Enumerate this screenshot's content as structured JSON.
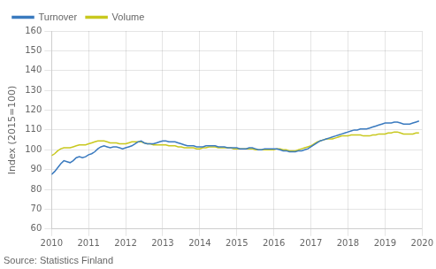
{
  "chart_data": {
    "type": "line",
    "ylabel": "Index (2015=100)",
    "annotations": [
      "Source: Statistics Finland"
    ],
    "xlim": [
      2010,
      2020
    ],
    "ylim": [
      60,
      160
    ],
    "xticks": [
      2010,
      2011,
      2012,
      2013,
      2014,
      2015,
      2016,
      2017,
      2018,
      2019,
      2020
    ],
    "yticks": [
      60,
      70,
      80,
      90,
      100,
      110,
      120,
      130,
      140,
      150,
      160
    ],
    "grid": true,
    "legend": "upper left",
    "x": [
      2010.0,
      2010.083,
      2010.167,
      2010.25,
      2010.333,
      2010.417,
      2010.5,
      2010.583,
      2010.667,
      2010.75,
      2010.833,
      2010.917,
      2011.0,
      2011.083,
      2011.167,
      2011.25,
      2011.333,
      2011.417,
      2011.5,
      2011.583,
      2011.667,
      2011.75,
      2011.833,
      2011.917,
      2012.0,
      2012.083,
      2012.167,
      2012.25,
      2012.333,
      2012.417,
      2012.5,
      2012.583,
      2012.667,
      2012.75,
      2012.833,
      2012.917,
      2013.0,
      2013.083,
      2013.167,
      2013.25,
      2013.333,
      2013.417,
      2013.5,
      2013.583,
      2013.667,
      2013.75,
      2013.833,
      2013.917,
      2014.0,
      2014.083,
      2014.167,
      2014.25,
      2014.333,
      2014.417,
      2014.5,
      2014.583,
      2014.667,
      2014.75,
      2014.833,
      2014.917,
      2015.0,
      2015.083,
      2015.167,
      2015.25,
      2015.333,
      2015.417,
      2015.5,
      2015.583,
      2015.667,
      2015.75,
      2015.833,
      2015.917,
      2016.0,
      2016.083,
      2016.167,
      2016.25,
      2016.333,
      2016.417,
      2016.5,
      2016.583,
      2016.667,
      2016.75,
      2016.833,
      2016.917,
      2017.0,
      2017.083,
      2017.167,
      2017.25,
      2017.333,
      2017.417,
      2017.5,
      2017.583,
      2017.667,
      2017.75,
      2017.833,
      2017.917,
      2018.0,
      2018.083,
      2018.167,
      2018.25,
      2018.333,
      2018.417,
      2018.5,
      2018.583,
      2018.667,
      2018.75,
      2018.833,
      2018.917,
      2019.0,
      2019.083,
      2019.167,
      2019.25,
      2019.333,
      2019.417,
      2019.5,
      2019.583,
      2019.667,
      2019.75,
      2019.833,
      2019.917
    ],
    "series": [
      {
        "name": "Turnover",
        "color": "#3a7abf",
        "values": [
          87.5,
          89.0,
          91.0,
          93.0,
          94.5,
          94.0,
          93.5,
          94.5,
          96.0,
          96.5,
          96.0,
          96.5,
          97.5,
          98.0,
          99.0,
          100.5,
          101.5,
          102.0,
          101.5,
          101.0,
          101.5,
          101.5,
          101.0,
          100.5,
          101.0,
          101.5,
          102.0,
          103.0,
          104.0,
          104.5,
          103.5,
          103.0,
          103.0,
          103.0,
          103.5,
          104.0,
          104.5,
          104.5,
          104.0,
          104.0,
          104.0,
          103.5,
          103.0,
          102.5,
          102.0,
          102.0,
          102.0,
          101.5,
          101.5,
          101.5,
          102.0,
          102.0,
          102.0,
          102.0,
          101.5,
          101.5,
          101.5,
          101.0,
          101.0,
          101.0,
          101.0,
          100.5,
          100.5,
          100.5,
          101.0,
          101.0,
          100.5,
          100.0,
          100.0,
          100.5,
          100.5,
          100.5,
          100.5,
          100.5,
          100.0,
          99.5,
          99.5,
          99.0,
          99.0,
          99.0,
          99.5,
          99.5,
          100.0,
          100.5,
          101.5,
          102.5,
          103.5,
          104.5,
          105.0,
          105.5,
          106.0,
          106.5,
          107.0,
          107.5,
          108.0,
          108.5,
          109.0,
          109.5,
          110.0,
          110.0,
          110.5,
          110.5,
          110.5,
          111.0,
          111.5,
          112.0,
          112.5,
          113.0,
          113.5,
          113.5,
          113.5,
          114.0,
          114.0,
          113.5,
          113.0,
          113.0,
          113.0,
          113.5,
          114.0,
          114.5
        ]
      },
      {
        "name": "Volume",
        "color": "#c8c81e",
        "values": [
          97.0,
          98.0,
          99.5,
          100.5,
          101.0,
          101.0,
          101.0,
          101.5,
          102.0,
          102.5,
          102.5,
          102.5,
          103.0,
          103.5,
          104.0,
          104.5,
          104.5,
          104.5,
          104.0,
          103.5,
          103.5,
          103.5,
          103.0,
          103.0,
          103.0,
          103.5,
          104.0,
          104.0,
          104.0,
          104.0,
          103.5,
          103.0,
          103.0,
          102.5,
          102.5,
          102.5,
          102.5,
          102.5,
          102.0,
          102.0,
          102.0,
          101.5,
          101.5,
          101.0,
          101.0,
          101.0,
          101.0,
          100.5,
          100.5,
          101.0,
          101.0,
          101.5,
          101.5,
          101.5,
          101.0,
          101.0,
          101.0,
          101.0,
          101.0,
          100.5,
          100.5,
          100.5,
          100.5,
          100.5,
          100.5,
          100.5,
          100.0,
          100.0,
          100.0,
          100.0,
          100.0,
          100.0,
          100.0,
          100.5,
          100.5,
          100.0,
          100.0,
          99.5,
          99.5,
          99.5,
          100.0,
          100.5,
          101.0,
          101.5,
          102.0,
          103.0,
          104.0,
          104.5,
          105.0,
          105.5,
          105.5,
          105.5,
          106.0,
          106.5,
          107.0,
          107.0,
          107.0,
          107.5,
          107.5,
          107.5,
          107.5,
          107.0,
          107.0,
          107.0,
          107.5,
          107.5,
          108.0,
          108.0,
          108.0,
          108.5,
          108.5,
          109.0,
          109.0,
          108.5,
          108.0,
          108.0,
          108.0,
          108.0,
          108.5,
          108.5
        ]
      }
    ]
  }
}
